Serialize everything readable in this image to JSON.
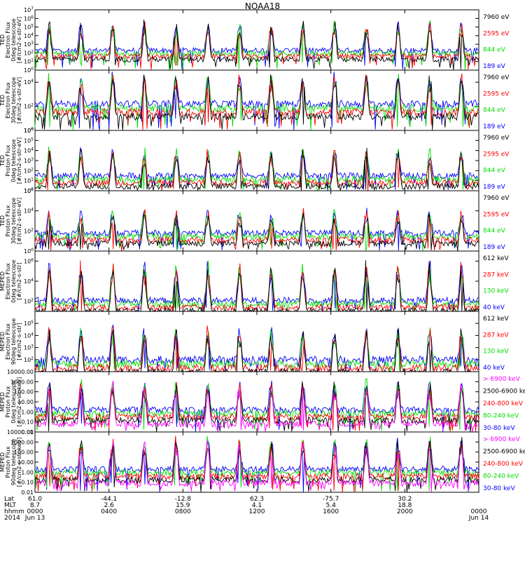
{
  "title": "NOAA18",
  "colors": {
    "black": "#000000",
    "blue": "#0000ff",
    "red": "#ff0000",
    "green": "#00dd00",
    "magenta": "#ff00ff"
  },
  "chart_data": [
    {
      "type": "line",
      "ylabel": [
        "TED",
        "Electron Flux",
        "0deg telescope",
        "[#/cm2-s-str-eV]"
      ],
      "yscale": "log",
      "ylim": [
        1,
        10000000
      ],
      "yticks": [
        "10^0",
        "10^1",
        "10^2",
        "10^3",
        "10^4",
        "10^5",
        "10^6",
        "10^7"
      ],
      "series": [
        {
          "name": "7960 eV",
          "color": "black"
        },
        {
          "name": "2595 eV",
          "color": "red"
        },
        {
          "name": "844 eV",
          "color": "green"
        },
        {
          "name": "189 eV",
          "color": "blue"
        }
      ],
      "baseline_log": 2.3,
      "peak_log": 5.8
    },
    {
      "type": "line",
      "ylabel": [
        "TED",
        "Electron Flux",
        "30deg telescope",
        "[#/cm2-s-str-eV]"
      ],
      "yscale": "log",
      "ylim": [
        1,
        100000
      ],
      "yticks": [
        "10^0",
        "10^2",
        "10^4"
      ],
      "series": [
        {
          "name": "7960 eV",
          "color": "black"
        },
        {
          "name": "2595 eV",
          "color": "red"
        },
        {
          "name": "844 eV",
          "color": "green"
        },
        {
          "name": "189 eV",
          "color": "blue"
        }
      ],
      "baseline_log": 2.2,
      "peak_log": 4.8
    },
    {
      "type": "line",
      "ylabel": [
        "TED",
        "Proton Flux",
        "0deg telescope",
        "[#/cm2-s-str-eV]"
      ],
      "yscale": "log",
      "ylim": [
        1,
        1000000
      ],
      "yticks": [
        "10^0",
        "10^1",
        "10^2",
        "10^3",
        "10^4",
        "10^5",
        "10^6"
      ],
      "series": [
        {
          "name": "7960 eV",
          "color": "black"
        },
        {
          "name": "2595 eV",
          "color": "red"
        },
        {
          "name": "844 eV",
          "color": "green"
        },
        {
          "name": "189 eV",
          "color": "blue"
        }
      ],
      "baseline_log": 1.5,
      "peak_log": 4.3
    },
    {
      "type": "line",
      "ylabel": [
        "TED",
        "Proton Flux",
        "30deg telescope",
        "[#/cm2-s-str-eV]"
      ],
      "yscale": "log",
      "ylim": [
        1,
        1000000
      ],
      "yticks": [
        "10^0",
        "10^2",
        "10^4",
        "10^6"
      ],
      "series": [
        {
          "name": "7960 eV",
          "color": "black"
        },
        {
          "name": "2595 eV",
          "color": "red"
        },
        {
          "name": "844 eV",
          "color": "green"
        },
        {
          "name": "189 eV",
          "color": "blue"
        }
      ],
      "baseline_log": 1.8,
      "peak_log": 4.2
    },
    {
      "type": "line",
      "ylabel": [
        "MEPED",
        "Electron Flux",
        "0deg telescope",
        "[#/cm2-s-str]"
      ],
      "yscale": "log",
      "ylim": [
        10,
        10000000
      ],
      "yticks": [
        "10^2",
        "10^4",
        "10^6"
      ],
      "series": [
        {
          "name": "612 keV",
          "color": "black"
        },
        {
          "name": "287 keV",
          "color": "red"
        },
        {
          "name": "130 keV",
          "color": "green"
        },
        {
          "name": "40 keV",
          "color": "blue"
        }
      ],
      "baseline_log": 2.1,
      "peak_log": 6.0
    },
    {
      "type": "line",
      "ylabel": [
        "MEPED",
        "Electron Flux",
        "90deg telescope",
        "[#/cm2-s-str]"
      ],
      "yscale": "log",
      "ylim": [
        10,
        1000000
      ],
      "yticks": [
        "10^2",
        "10^3",
        "10^4",
        "10^5"
      ],
      "series": [
        {
          "name": "612 keV",
          "color": "black"
        },
        {
          "name": "287 keV",
          "color": "red"
        },
        {
          "name": "130 keV",
          "color": "green"
        },
        {
          "name": "40 keV",
          "color": "blue"
        }
      ],
      "baseline_log": 2.0,
      "peak_log": 4.8
    },
    {
      "type": "line",
      "ylabel": [
        "MEPED",
        "Proton Flux",
        "0deg telescope",
        "[#/cm2-s-str-keV]"
      ],
      "yscale": "log",
      "ylim": [
        0.01,
        10000
      ],
      "yticks": [
        "0.01",
        "0.10",
        "1.00",
        "10.00",
        "100.00",
        "1000.00",
        "10000.00"
      ],
      "series": [
        {
          "name": "> 6900 keV",
          "color": "magenta"
        },
        {
          "name": "2500-6900 keV",
          "color": "black"
        },
        {
          "name": "240-800 keV",
          "color": "red"
        },
        {
          "name": "80-240 keV",
          "color": "green"
        },
        {
          "name": "30-80 keV",
          "color": "blue"
        }
      ],
      "baseline_log": 0.2,
      "peak_log": 3.2
    },
    {
      "type": "line",
      "ylabel": [
        "MEPED",
        "Proton Flux",
        "90deg telescope",
        "[#/cm2-s-str-keV]"
      ],
      "yscale": "log",
      "ylim": [
        0.01,
        10000
      ],
      "yticks": [
        "0.01",
        "0.10",
        "1.00",
        "10.00",
        "100.00",
        "1000.00",
        "10000.00"
      ],
      "series": [
        {
          "name": "> 6900 keV",
          "color": "magenta"
        },
        {
          "name": "2500-6900 keV",
          "color": "black"
        },
        {
          "name": "240-800 keV",
          "color": "red"
        },
        {
          "name": "80-240 keV",
          "color": "green"
        },
        {
          "name": "30-80 keV",
          "color": "blue"
        }
      ],
      "baseline_log": 0.3,
      "peak_log": 3.5
    }
  ],
  "footer": {
    "row_labels": [
      "Lat",
      "MLT",
      "hhmm",
      "2014"
    ],
    "columns": [
      {
        "lat": "61.0",
        "mlt": "8.7",
        "hhmm": "0000",
        "date": "Jun 13"
      },
      {
        "lat": "-44.1",
        "mlt": "2.6",
        "hhmm": "0400",
        "date": ""
      },
      {
        "lat": "-12.8",
        "mlt": "15.9",
        "hhmm": "0800",
        "date": ""
      },
      {
        "lat": "62.3",
        "mlt": "4.1",
        "hhmm": "1200",
        "date": ""
      },
      {
        "lat": "-75.7",
        "mlt": "5.4",
        "hhmm": "1600",
        "date": ""
      },
      {
        "lat": "30.2",
        "mlt": "18.8",
        "hhmm": "2000",
        "date": ""
      },
      {
        "lat": "",
        "mlt": "",
        "hhmm": "0000",
        "date": "Jun 14"
      }
    ]
  }
}
